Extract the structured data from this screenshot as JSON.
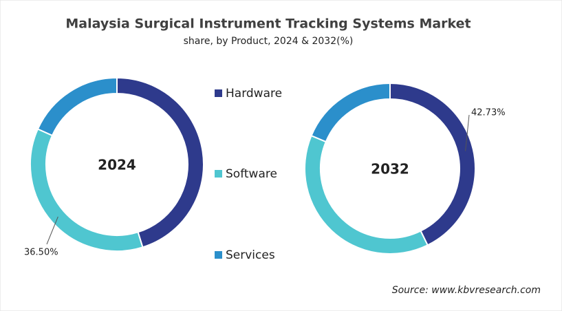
{
  "chart_data": [
    {
      "type": "pie",
      "title": "Malaysia Surgical Instrument Tracking Systems Market",
      "subtitle": "share, by Product, 2024 & 2032(%)",
      "center_label": "2024",
      "categories": [
        "Hardware",
        "Software",
        "Services"
      ],
      "values": [
        45.2,
        36.5,
        18.3
      ],
      "value_labels": [
        null,
        "36.50%",
        null
      ],
      "colors": [
        "#2e3a8c",
        "#4fc6d0",
        "#2b8fcb"
      ],
      "donut": true
    },
    {
      "type": "pie",
      "center_label": "2032",
      "categories": [
        "Hardware",
        "Software",
        "Services"
      ],
      "values": [
        42.73,
        38.57,
        18.7
      ],
      "value_labels": [
        "42.73%",
        null,
        null
      ],
      "colors": [
        "#2e3a8c",
        "#4fc6d0",
        "#2b8fcb"
      ],
      "donut": true,
      "source": "Source: www.kbvresearch.com"
    }
  ]
}
